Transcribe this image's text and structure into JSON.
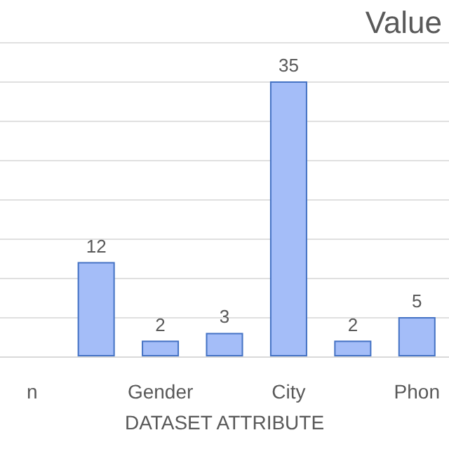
{
  "chart_data": {
    "type": "bar",
    "title": "Value",
    "xlabel": "DATASET ATTRIBUTE",
    "categories": [
      "n",
      null,
      "Gender",
      null,
      "City",
      null,
      "Phon"
    ],
    "values": [
      null,
      12,
      2,
      3,
      35,
      2,
      5
    ],
    "color": "#a4bdf8",
    "ylim": [
      0,
      40
    ],
    "yticks": [
      {
        "value": 0,
        "label": null
      },
      {
        "value": 5,
        "label": null
      },
      {
        "value": 10,
        "label": null
      },
      {
        "value": 15,
        "label": null
      },
      {
        "value": 20,
        "label": null
      },
      {
        "value": 25,
        "label": null
      },
      {
        "value": 30,
        "label": null
      },
      {
        "value": 35,
        "label": null
      },
      {
        "value": 40,
        "label": null
      }
    ],
    "tick_labels": "x",
    "grid": "y",
    "data_labels": true
  }
}
